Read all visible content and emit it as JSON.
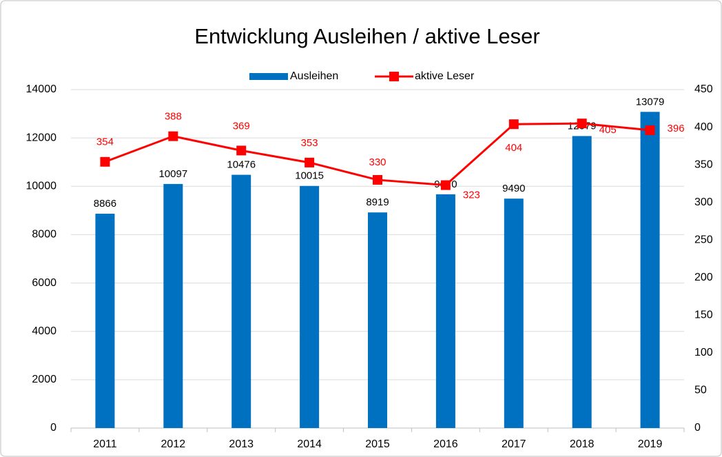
{
  "chart_data": {
    "type": "bar",
    "title": "Entwicklung Ausleihen / aktive Leser",
    "categories": [
      "2011",
      "2012",
      "2013",
      "2014",
      "2015",
      "2016",
      "2017",
      "2018",
      "2019"
    ],
    "series": [
      {
        "name": "Ausleihen",
        "color": "#0070c0",
        "values": [
          8866,
          10097,
          10476,
          10015,
          8919,
          9670,
          9490,
          12079,
          13079
        ]
      },
      {
        "name": "aktive Leser",
        "color": "#ff0000",
        "axis": "y2",
        "values": [
          354,
          388,
          369,
          353,
          330,
          323,
          404,
          405,
          396
        ]
      }
    ],
    "ylim": [
      0,
      14000
    ],
    "yticks": [
      0,
      2000,
      4000,
      6000,
      8000,
      10000,
      12000,
      14000
    ],
    "y2lim": [
      0,
      450
    ],
    "y2ticks": [
      0,
      50,
      100,
      150,
      200,
      250,
      300,
      350,
      400,
      450
    ],
    "grid": true,
    "legend": "top"
  }
}
